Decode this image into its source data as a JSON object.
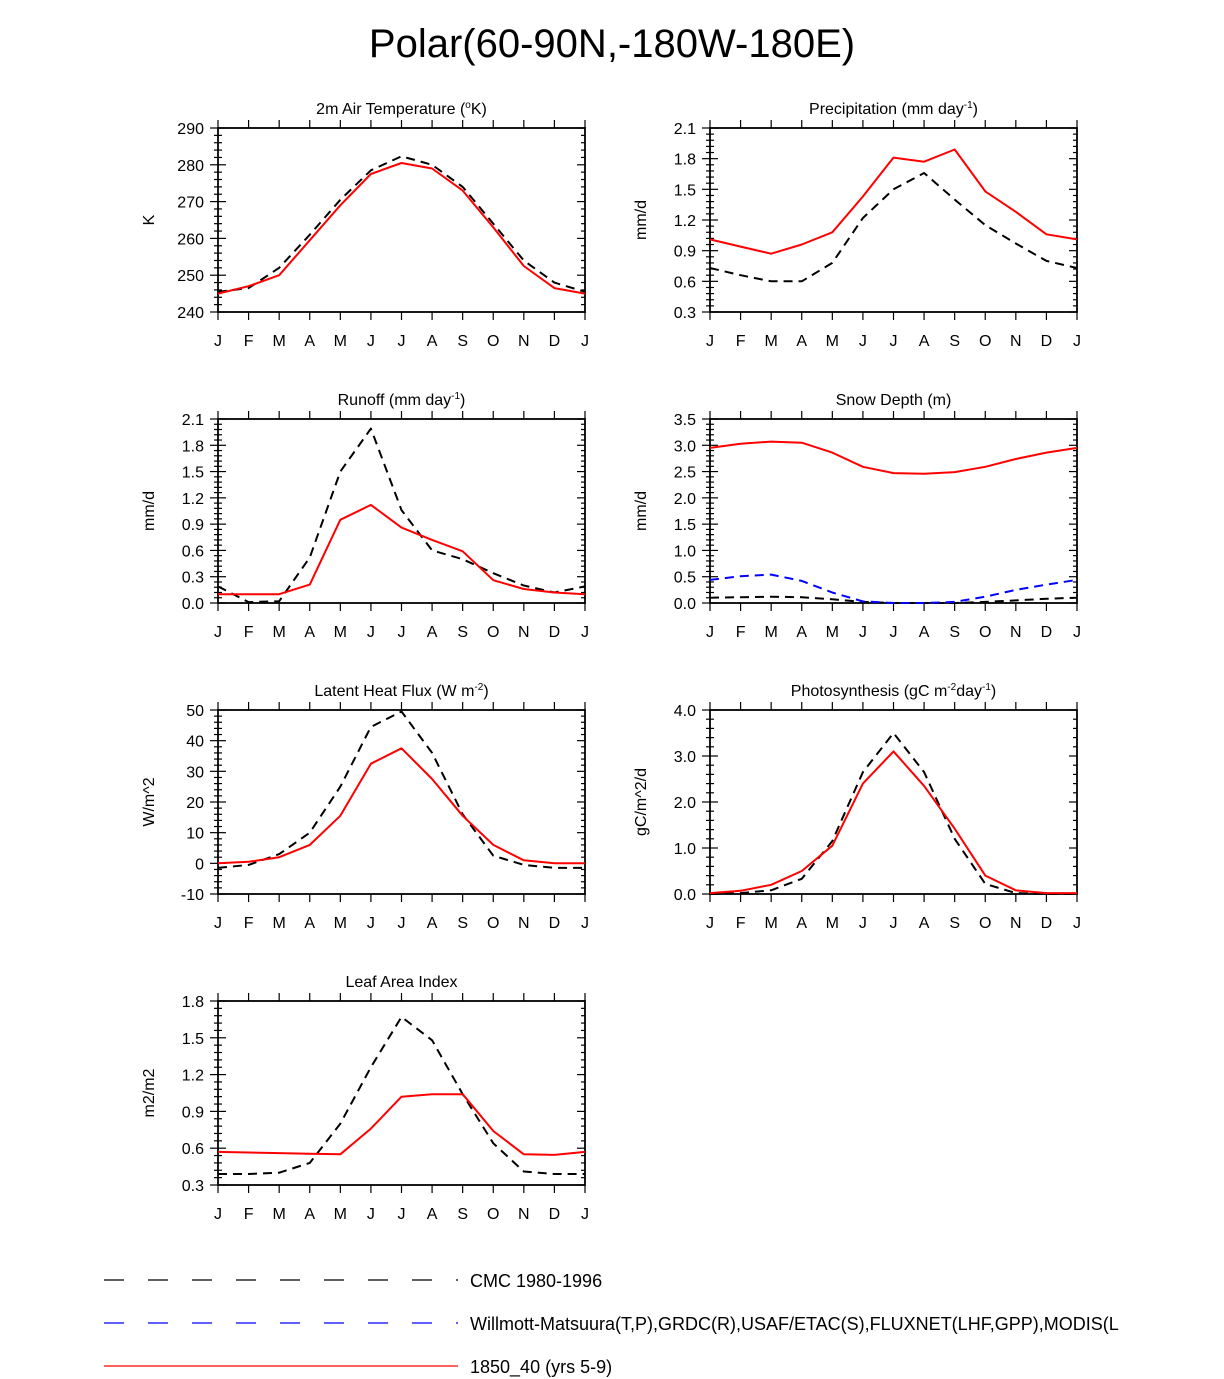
{
  "figure": {
    "title": "Polar(60-90N,-180W-180E)"
  },
  "months": [
    "J",
    "F",
    "M",
    "A",
    "M",
    "J",
    "J",
    "A",
    "S",
    "O",
    "N",
    "D",
    "J"
  ],
  "chart_data": [
    {
      "type": "line",
      "title": "2m Air Temperature (",
      "title_sup": "o",
      "title_tail": "K)",
      "ylabel": "K",
      "ylim": [
        240,
        290
      ],
      "yticks": [
        240,
        250,
        260,
        270,
        280,
        290
      ],
      "ytick_labels": [
        "240",
        "250",
        "260",
        "270",
        "280",
        "290"
      ],
      "series": [
        {
          "name": "CMC 1980-1996",
          "color": "#000000",
          "dash": "dashed",
          "values": [
            245.5,
            246.5,
            252,
            261,
            270.5,
            278.5,
            282.3,
            280,
            274,
            264,
            254,
            248,
            245.5
          ]
        },
        {
          "name": "1850_40 (yrs 5-9)",
          "color": "#ff0000",
          "dash": "solid",
          "values": [
            245,
            247,
            250,
            259.5,
            269,
            277.5,
            280.5,
            279,
            273,
            263,
            252.5,
            246.5,
            245
          ]
        }
      ]
    },
    {
      "type": "line",
      "title": "Precipitation (mm day",
      "title_sup": "-1",
      "title_tail": ")",
      "ylabel": "mm/d",
      "ylim": [
        0.3,
        2.1
      ],
      "yticks": [
        0.3,
        0.6,
        0.9,
        1.2,
        1.5,
        1.8,
        2.1
      ],
      "ytick_labels": [
        "0.3",
        "0.6",
        "0.9",
        "1.2",
        "1.5",
        "1.8",
        "2.1"
      ],
      "series": [
        {
          "name": "CMC 1980-1996",
          "color": "#000000",
          "dash": "dashed",
          "values": [
            0.73,
            0.66,
            0.6,
            0.6,
            0.78,
            1.22,
            1.5,
            1.66,
            1.4,
            1.15,
            0.97,
            0.8,
            0.73
          ]
        },
        {
          "name": "1850_40 (yrs 5-9)",
          "color": "#ff0000",
          "dash": "solid",
          "values": [
            1.01,
            0.94,
            0.87,
            0.96,
            1.08,
            1.43,
            1.81,
            1.77,
            1.89,
            1.48,
            1.28,
            1.06,
            1.01
          ]
        }
      ]
    },
    {
      "type": "line",
      "title": "Runoff (mm day",
      "title_sup": "-1",
      "title_tail": ")",
      "ylabel": "mm/d",
      "ylim": [
        0,
        2.1
      ],
      "yticks": [
        0,
        0.3,
        0.6,
        0.9,
        1.2,
        1.5,
        1.8,
        2.1
      ],
      "ytick_labels": [
        "0.0",
        "0.3",
        "0.6",
        "0.9",
        "1.2",
        "1.5",
        "1.8",
        "2.1"
      ],
      "series": [
        {
          "name": "CMC 1980-1996",
          "color": "#000000",
          "dash": "dashed",
          "values": [
            0.19,
            0.01,
            0.02,
            0.52,
            1.5,
            1.99,
            1.06,
            0.6,
            0.5,
            0.34,
            0.2,
            0.12,
            0.19
          ]
        },
        {
          "name": "1850_40 (yrs 5-9)",
          "color": "#ff0000",
          "dash": "solid",
          "values": [
            0.1,
            0.1,
            0.1,
            0.21,
            0.95,
            1.12,
            0.86,
            0.72,
            0.59,
            0.26,
            0.16,
            0.12,
            0.1
          ]
        }
      ]
    },
    {
      "type": "line",
      "title": "Snow Depth (m)",
      "title_sup": "",
      "title_tail": "",
      "ylabel": "mm/d",
      "ylim": [
        0,
        3.5
      ],
      "yticks": [
        0,
        0.5,
        1.0,
        1.5,
        2.0,
        2.5,
        3.0,
        3.5
      ],
      "ytick_labels": [
        "0.0",
        "0.5",
        "1.0",
        "1.5",
        "2.0",
        "2.5",
        "3.0",
        "3.5"
      ],
      "series": [
        {
          "name": "CMC 1980-1996",
          "color": "#000000",
          "dash": "dashed",
          "values": [
            0.1,
            0.11,
            0.12,
            0.11,
            0.07,
            0.02,
            0.0,
            0.0,
            0.0,
            0.02,
            0.05,
            0.08,
            0.1
          ]
        },
        {
          "name": "Willmott-Matsuura(T,P),GRDC(R),USAF/ETAC(S),FLUXNET(LHF,GPP),MODIS(L",
          "color": "#0000ff",
          "dash": "dashed",
          "values": [
            0.44,
            0.51,
            0.54,
            0.42,
            0.2,
            0.03,
            0.0,
            0.0,
            0.02,
            0.12,
            0.25,
            0.35,
            0.44
          ]
        },
        {
          "name": "1850_40 (yrs 5-9)",
          "color": "#ff0000",
          "dash": "solid",
          "values": [
            2.95,
            3.03,
            3.07,
            3.05,
            2.86,
            2.59,
            2.47,
            2.46,
            2.49,
            2.59,
            2.74,
            2.86,
            2.95
          ]
        }
      ]
    },
    {
      "type": "line",
      "title": "Latent Heat Flux (W m",
      "title_sup": "-2",
      "title_tail": ")",
      "ylabel": "W/m^2",
      "ylim": [
        -10,
        50
      ],
      "yticks": [
        -10,
        0,
        10,
        20,
        30,
        40,
        50
      ],
      "ytick_labels": [
        "-10",
        "0",
        "10",
        "20",
        "30",
        "40",
        "50"
      ],
      "series": [
        {
          "name": "CMC 1980-1996",
          "color": "#000000",
          "dash": "dashed",
          "values": [
            -1.5,
            -0.5,
            3,
            10,
            25,
            44.5,
            49.5,
            36,
            16,
            2.5,
            -0.5,
            -1.5,
            -1.5
          ]
        },
        {
          "name": "1850_40 (yrs 5-9)",
          "color": "#ff0000",
          "dash": "solid",
          "values": [
            0,
            0.5,
            2,
            6,
            15.5,
            32.5,
            37.5,
            27.5,
            15.5,
            6,
            1,
            0,
            0
          ]
        }
      ]
    },
    {
      "type": "line",
      "title": "Photosynthesis (gC m",
      "title_sup": "-2",
      "title_mid": "day",
      "title_sup2": "-1",
      "title_tail": ")",
      "ylabel": "gC/m^2/d",
      "ylim": [
        0,
        4.0
      ],
      "yticks": [
        0,
        1.0,
        2.0,
        3.0,
        4.0
      ],
      "ytick_labels": [
        "0.0",
        "1.0",
        "2.0",
        "3.0",
        "4.0"
      ],
      "series": [
        {
          "name": "CMC 1980-1996",
          "color": "#000000",
          "dash": "dashed",
          "values": [
            0.0,
            0.02,
            0.08,
            0.33,
            1.15,
            2.65,
            3.5,
            2.65,
            1.2,
            0.22,
            0.02,
            0.0,
            0.0
          ]
        },
        {
          "name": "1850_40 (yrs 5-9)",
          "color": "#ff0000",
          "dash": "solid",
          "values": [
            0.02,
            0.07,
            0.2,
            0.5,
            1.05,
            2.4,
            3.1,
            2.35,
            1.42,
            0.4,
            0.08,
            0.02,
            0.02
          ]
        }
      ]
    },
    {
      "type": "line",
      "title": "Leaf Area Index",
      "title_sup": "",
      "title_tail": "",
      "ylabel": "m2/m2",
      "ylim": [
        0.3,
        1.8
      ],
      "yticks": [
        0.3,
        0.6,
        0.9,
        1.2,
        1.5,
        1.8
      ],
      "ytick_labels": [
        "0.3",
        "0.6",
        "0.9",
        "1.2",
        "1.5",
        "1.8"
      ],
      "series": [
        {
          "name": "CMC 1980-1996",
          "color": "#000000",
          "dash": "dashed",
          "values": [
            0.39,
            0.39,
            0.4,
            0.48,
            0.8,
            1.26,
            1.67,
            1.48,
            1.04,
            0.64,
            0.41,
            0.39,
            0.39
          ]
        },
        {
          "name": "1850_40 (yrs 5-9)",
          "color": "#ff0000",
          "dash": "solid",
          "values": [
            0.57,
            0.565,
            0.56,
            0.555,
            0.55,
            0.76,
            1.02,
            1.04,
            1.04,
            0.74,
            0.55,
            0.545,
            0.57
          ]
        }
      ]
    }
  ],
  "legend": {
    "items": [
      {
        "label": "CMC 1980-1996",
        "color": "#000000",
        "dash": "dashed"
      },
      {
        "label": "Willmott-Matsuura(T,P),GRDC(R),USAF/ETAC(S),FLUXNET(LHF,GPP),MODIS(L",
        "color": "#0000ff",
        "dash": "dashed"
      },
      {
        "label": "1850_40 (yrs 5-9)",
        "color": "#ff0000",
        "dash": "solid"
      }
    ]
  }
}
